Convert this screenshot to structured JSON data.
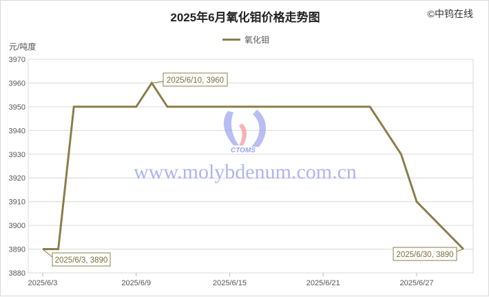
{
  "title": "2025年6月氧化钼价格走势图",
  "copyright": "©中钨在线",
  "watermark": {
    "logo_text": "CTOMS",
    "url": "www.molybdenum.com.cn"
  },
  "colors": {
    "line": "#8b7d4a",
    "grid": "#d9d9d9",
    "watermark": "#9aa3ef"
  },
  "chart_data": {
    "type": "line",
    "title": "2025年6月氧化钼价格走势图",
    "ylabel": "元/吨度",
    "xlabel": "",
    "ylim": [
      3880,
      3970
    ],
    "yticks": [
      3880,
      3890,
      3900,
      3910,
      3920,
      3930,
      3940,
      3950,
      3960,
      3970
    ],
    "xlim": [
      "2025/6/3",
      "2025/6/30"
    ],
    "xticks": [
      "2025/6/3",
      "2025/6/9",
      "2025/6/15",
      "2025/6/21",
      "2025/6/27"
    ],
    "grid": true,
    "legend_position": "top",
    "series": [
      {
        "name": "氧化钼",
        "color": "#8b7d4a",
        "points": [
          [
            "2025/6/3",
            3890
          ],
          [
            "2025/6/4",
            3890
          ],
          [
            "2025/6/5",
            3950
          ],
          [
            "2025/6/6",
            3950
          ],
          [
            "2025/6/9",
            3950
          ],
          [
            "2025/6/10",
            3960
          ],
          [
            "2025/6/11",
            3950
          ],
          [
            "2025/6/12",
            3950
          ],
          [
            "2025/6/13",
            3950
          ],
          [
            "2025/6/16",
            3950
          ],
          [
            "2025/6/17",
            3950
          ],
          [
            "2025/6/18",
            3950
          ],
          [
            "2025/6/19",
            3950
          ],
          [
            "2025/6/20",
            3950
          ],
          [
            "2025/6/23",
            3950
          ],
          [
            "2025/6/24",
            3950
          ],
          [
            "2025/6/25",
            3940
          ],
          [
            "2025/6/26",
            3930
          ],
          [
            "2025/6/27",
            3910
          ],
          [
            "2025/6/30",
            3890
          ]
        ]
      }
    ],
    "annotations": [
      "2025/6/3, 3890",
      "2025/6/10, 3960",
      "2025/6/30, 3890"
    ]
  }
}
